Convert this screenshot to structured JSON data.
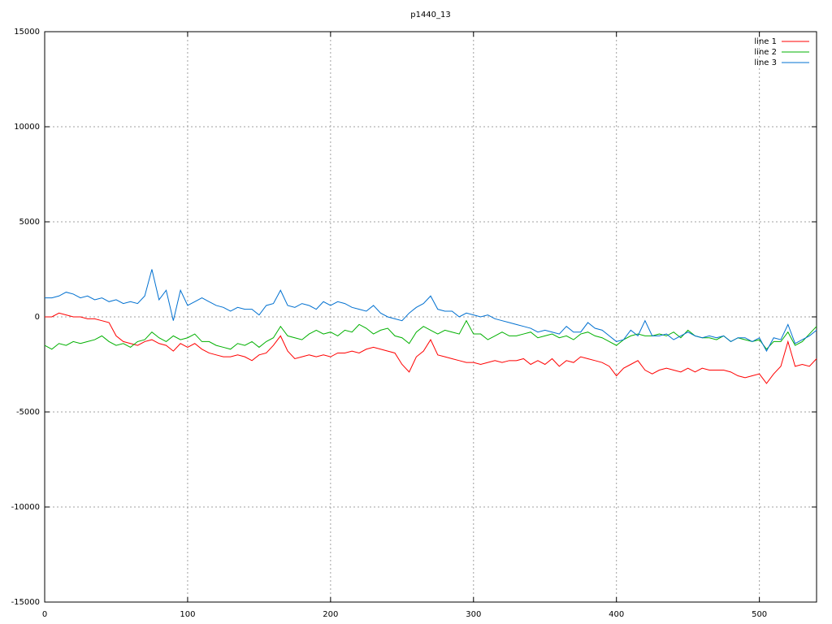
{
  "chart_data": {
    "type": "line",
    "title": "p1440_13",
    "x": [
      0,
      5,
      10,
      15,
      20,
      25,
      30,
      35,
      40,
      45,
      50,
      55,
      60,
      65,
      70,
      75,
      80,
      85,
      90,
      95,
      100,
      105,
      110,
      115,
      120,
      125,
      130,
      135,
      140,
      145,
      150,
      155,
      160,
      165,
      170,
      175,
      180,
      185,
      190,
      195,
      200,
      205,
      210,
      215,
      220,
      225,
      230,
      235,
      240,
      245,
      250,
      255,
      260,
      265,
      270,
      275,
      280,
      285,
      290,
      295,
      300,
      305,
      310,
      315,
      320,
      325,
      330,
      335,
      340,
      345,
      350,
      355,
      360,
      365,
      370,
      375,
      380,
      385,
      390,
      395,
      400,
      405,
      410,
      415,
      420,
      425,
      430,
      435,
      440,
      445,
      450,
      455,
      460,
      465,
      470,
      475,
      480,
      485,
      490,
      495,
      500,
      505,
      510,
      515,
      520,
      525,
      530,
      535,
      540
    ],
    "series": [
      {
        "name": "line 1",
        "color": "#ff0000",
        "values": [
          0,
          0,
          200,
          100,
          0,
          0,
          -100,
          -100,
          -200,
          -300,
          -1000,
          -1300,
          -1400,
          -1500,
          -1300,
          -1200,
          -1400,
          -1500,
          -1800,
          -1400,
          -1600,
          -1400,
          -1700,
          -1900,
          -2000,
          -2100,
          -2100,
          -2000,
          -2100,
          -2300,
          -2000,
          -1900,
          -1500,
          -1000,
          -1800,
          -2200,
          -2100,
          -2000,
          -2100,
          -2000,
          -2100,
          -1900,
          -1900,
          -1800,
          -1900,
          -1700,
          -1600,
          -1700,
          -1800,
          -1900,
          -2500,
          -2900,
          -2100,
          -1800,
          -1200,
          -2000,
          -2100,
          -2200,
          -2300,
          -2400,
          -2400,
          -2500,
          -2400,
          -2300,
          -2400,
          -2300,
          -2300,
          -2200,
          -2500,
          -2300,
          -2500,
          -2200,
          -2600,
          -2300,
          -2400,
          -2100,
          -2200,
          -2300,
          -2400,
          -2600,
          -3100,
          -2700,
          -2500,
          -2300,
          -2800,
          -3000,
          -2800,
          -2700,
          -2800,
          -2900,
          -2700,
          -2900,
          -2700,
          -2800,
          -2800,
          -2800,
          -2900,
          -3100,
          -3200,
          -3100,
          -3000,
          -3500,
          -3000,
          -2600,
          -1300,
          -2600,
          -2500,
          -2600,
          -2200
        ]
      },
      {
        "name": "line 2",
        "color": "#00b000",
        "values": [
          -1500,
          -1700,
          -1400,
          -1500,
          -1300,
          -1400,
          -1300,
          -1200,
          -1000,
          -1300,
          -1500,
          -1400,
          -1600,
          -1300,
          -1200,
          -800,
          -1100,
          -1300,
          -1000,
          -1200,
          -1100,
          -900,
          -1300,
          -1300,
          -1500,
          -1600,
          -1700,
          -1400,
          -1500,
          -1300,
          -1600,
          -1300,
          -1100,
          -500,
          -1000,
          -1100,
          -1200,
          -900,
          -700,
          -900,
          -800,
          -1000,
          -700,
          -800,
          -400,
          -600,
          -900,
          -700,
          -600,
          -1000,
          -1100,
          -1400,
          -800,
          -500,
          -700,
          -900,
          -700,
          -800,
          -900,
          -200,
          -900,
          -900,
          -1200,
          -1000,
          -800,
          -1000,
          -1000,
          -900,
          -800,
          -1100,
          -1000,
          -900,
          -1100,
          -1000,
          -1200,
          -900,
          -800,
          -1000,
          -1100,
          -1300,
          -1500,
          -1200,
          -1000,
          -900,
          -1000,
          -1000,
          -900,
          -1000,
          -800,
          -1100,
          -700,
          -1000,
          -1100,
          -1100,
          -1200,
          -1000,
          -1300,
          -1100,
          -1200,
          -1300,
          -1200,
          -1700,
          -1300,
          -1300,
          -800,
          -1500,
          -1300,
          -900,
          -500
        ]
      },
      {
        "name": "line 3",
        "color": "#0070d0",
        "values": [
          1000,
          1000,
          1100,
          1300,
          1200,
          1000,
          1100,
          900,
          1000,
          800,
          900,
          700,
          800,
          700,
          1100,
          2500,
          900,
          1400,
          -200,
          1400,
          600,
          800,
          1000,
          800,
          600,
          500,
          300,
          500,
          400,
          400,
          100,
          600,
          700,
          1400,
          600,
          500,
          700,
          600,
          400,
          800,
          600,
          800,
          700,
          500,
          400,
          300,
          600,
          200,
          0,
          -100,
          -200,
          200,
          500,
          700,
          1100,
          400,
          300,
          300,
          0,
          200,
          100,
          0,
          100,
          -100,
          -200,
          -300,
          -400,
          -500,
          -600,
          -800,
          -700,
          -800,
          -900,
          -500,
          -800,
          -800,
          -300,
          -600,
          -700,
          -1000,
          -1300,
          -1200,
          -700,
          -1000,
          -200,
          -1000,
          -1000,
          -900,
          -1200,
          -1000,
          -800,
          -1000,
          -1100,
          -1000,
          -1100,
          -1000,
          -1300,
          -1100,
          -1100,
          -1300,
          -1100,
          -1800,
          -1100,
          -1200,
          -400,
          -1400,
          -1200,
          -1000,
          -700
        ]
      }
    ],
    "xlim": [
      0,
      540
    ],
    "xticks": [
      0,
      100,
      200,
      300,
      400,
      500
    ],
    "ylim": [
      -15000,
      15000
    ],
    "yticks": [
      -15000,
      -10000,
      -5000,
      0,
      5000,
      10000,
      15000
    ],
    "grid": true,
    "legend": "top-right"
  }
}
